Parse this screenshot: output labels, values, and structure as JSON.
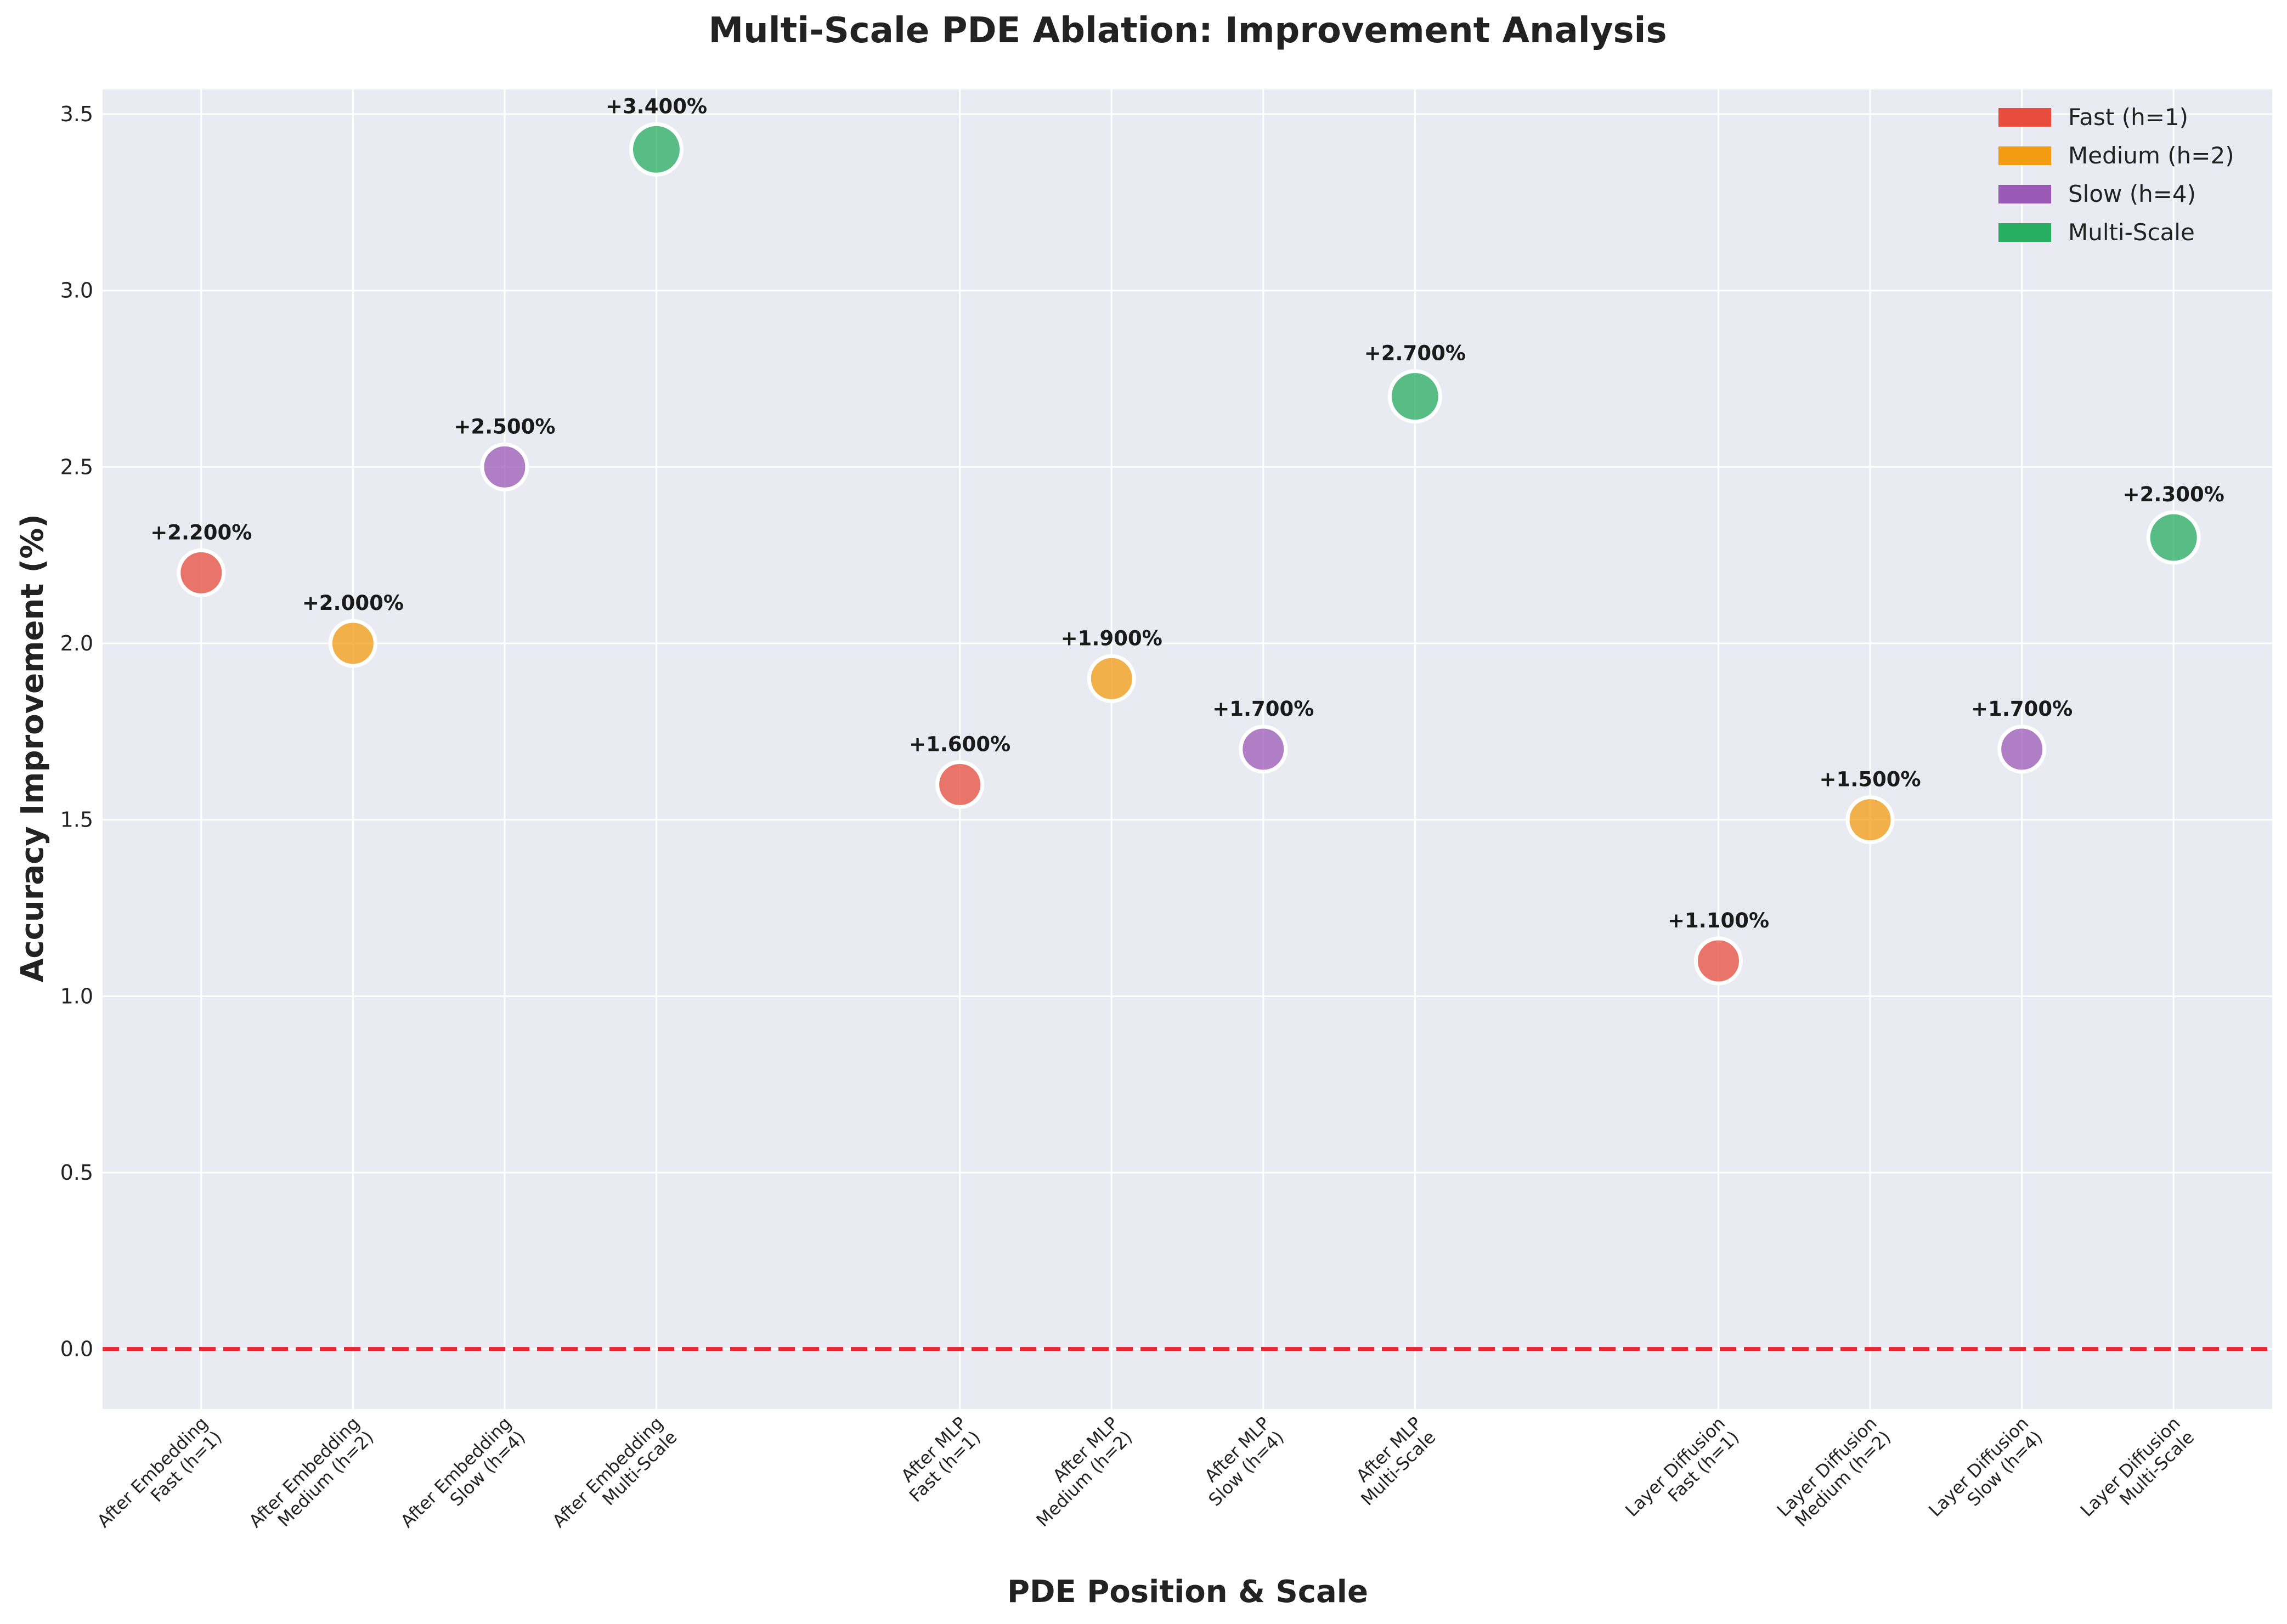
{
  "chart_data": {
    "type": "scatter",
    "title": "Multi-Scale PDE Ablation: Improvement Analysis",
    "xlabel": "PDE Position & Scale",
    "ylabel": "Accuracy Improvement (%)",
    "ylim": [
      -0.17,
      3.57
    ],
    "yticks": [
      "0.0",
      "0.5",
      "1.0",
      "1.5",
      "2.0",
      "2.5",
      "3.0",
      "3.5"
    ],
    "grid": true,
    "legend_position": "top-right",
    "reference_line": {
      "y": 0.0,
      "style": "dashed",
      "color": "#e8222f"
    },
    "series_colors": {
      "Fast (h=1)": "#e74c3c",
      "Medium (h=2)": "#f39c12",
      "Slow (h=4)": "#9b59b6",
      "Multi-Scale": "#27ae60"
    },
    "legend": [
      {
        "name": "Fast (h=1)",
        "color": "#e74c3c"
      },
      {
        "name": "Medium (h=2)",
        "color": "#f39c12"
      },
      {
        "name": "Slow (h=4)",
        "color": "#9b59b6"
      },
      {
        "name": "Multi-Scale",
        "color": "#27ae60"
      }
    ],
    "points": [
      {
        "x": 0,
        "position": "After Embedding",
        "scale": "Fast (h=1)",
        "value": 2.2,
        "label": "+2.200%"
      },
      {
        "x": 1,
        "position": "After Embedding",
        "scale": "Medium (h=2)",
        "value": 2.0,
        "label": "+2.000%"
      },
      {
        "x": 2,
        "position": "After Embedding",
        "scale": "Slow (h=4)",
        "value": 2.5,
        "label": "+2.500%"
      },
      {
        "x": 3,
        "position": "After Embedding",
        "scale": "Multi-Scale",
        "value": 3.4,
        "label": "+3.400%"
      },
      {
        "x": 5,
        "position": "After MLP",
        "scale": "Fast (h=1)",
        "value": 1.6,
        "label": "+1.600%"
      },
      {
        "x": 6,
        "position": "After MLP",
        "scale": "Medium (h=2)",
        "value": 1.9,
        "label": "+1.900%"
      },
      {
        "x": 7,
        "position": "After MLP",
        "scale": "Slow (h=4)",
        "value": 1.7,
        "label": "+1.700%"
      },
      {
        "x": 8,
        "position": "After MLP",
        "scale": "Multi-Scale",
        "value": 2.7,
        "label": "+2.700%"
      },
      {
        "x": 10,
        "position": "Layer Diffusion",
        "scale": "Fast (h=1)",
        "value": 1.1,
        "label": "+1.100%"
      },
      {
        "x": 11,
        "position": "Layer Diffusion",
        "scale": "Medium (h=2)",
        "value": 1.5,
        "label": "+1.500%"
      },
      {
        "x": 12,
        "position": "Layer Diffusion",
        "scale": "Slow (h=4)",
        "value": 1.7,
        "label": "+1.700%"
      },
      {
        "x": 13,
        "position": "Layer Diffusion",
        "scale": "Multi-Scale",
        "value": 2.3,
        "label": "+2.300%"
      }
    ]
  }
}
